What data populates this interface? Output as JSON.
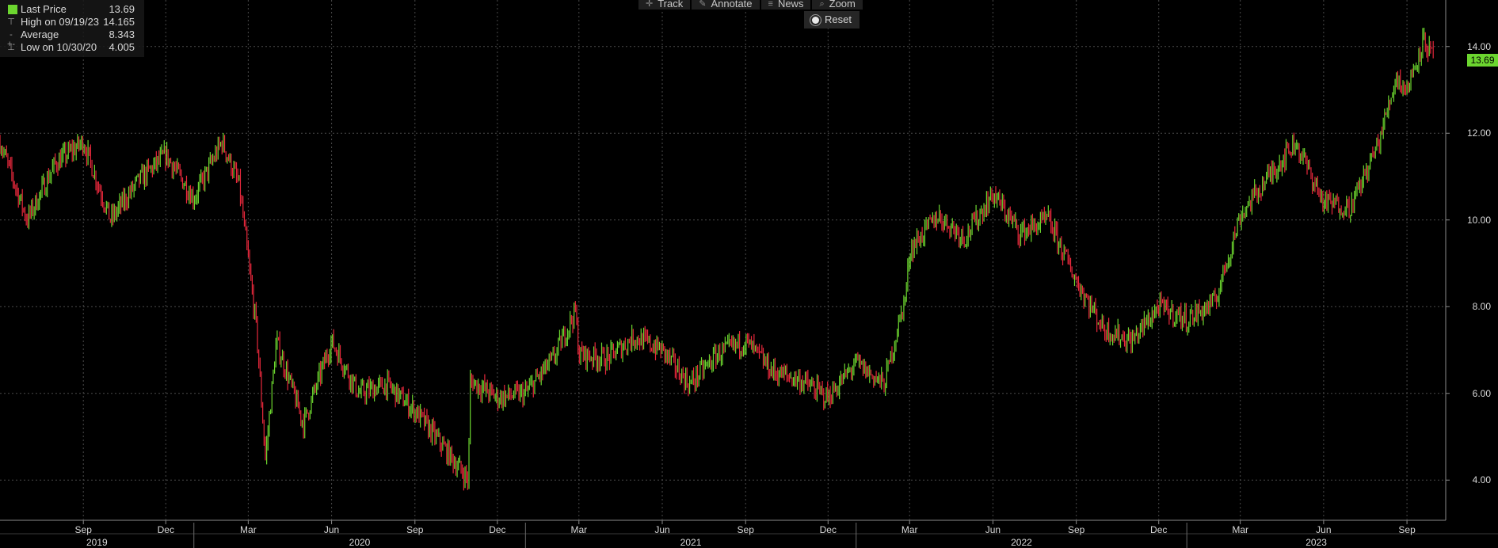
{
  "legend": {
    "items": [
      {
        "label": "Last Price",
        "value": "13.69",
        "icon": "green-square-swatch"
      },
      {
        "label": "High on 09/19/23",
        "value": "14.165",
        "icon": "high-marker-icon"
      },
      {
        "label": "Average",
        "value": "8.343",
        "icon": "average-line-icon"
      },
      {
        "label": "Low on 10/30/20",
        "value": "4.005",
        "icon": "low-marker-icon"
      }
    ]
  },
  "toolbar": {
    "track_label": "Track",
    "annotate_label": "Annotate",
    "news_label": "News",
    "zoom_label": "Zoom",
    "reset_label": "Reset"
  },
  "colors": {
    "background": "#000000",
    "up": "#6cd62f",
    "down": "#e8283c",
    "grid": "#4a4a4a",
    "last_price_tag": "#6cd62f"
  },
  "last_price_tag": "13.69",
  "chart_data": {
    "type": "line",
    "subtype": "ohlc-bars",
    "title": "",
    "xlabel": "",
    "ylabel": "",
    "ylim": [
      3.0,
      15.0
    ],
    "y_ticks": [
      "4.00",
      "6.00",
      "8.00",
      "10.00",
      "12.00",
      "14.00"
    ],
    "x_range": [
      "2019-06",
      "2023-10"
    ],
    "x_month_ticks": [
      {
        "label": "Sep",
        "date": "2019-09"
      },
      {
        "label": "Dec",
        "date": "2019-12"
      },
      {
        "label": "Mar",
        "date": "2020-03"
      },
      {
        "label": "Jun",
        "date": "2020-06"
      },
      {
        "label": "Sep",
        "date": "2020-09"
      },
      {
        "label": "Dec",
        "date": "2020-12"
      },
      {
        "label": "Mar",
        "date": "2021-03"
      },
      {
        "label": "Jun",
        "date": "2021-06"
      },
      {
        "label": "Sep",
        "date": "2021-09"
      },
      {
        "label": "Dec",
        "date": "2021-12"
      },
      {
        "label": "Mar",
        "date": "2022-03"
      },
      {
        "label": "Jun",
        "date": "2022-06"
      },
      {
        "label": "Sep",
        "date": "2022-09"
      },
      {
        "label": "Dec",
        "date": "2022-12"
      },
      {
        "label": "Mar",
        "date": "2023-03"
      },
      {
        "label": "Jun",
        "date": "2023-06"
      },
      {
        "label": "Sep",
        "date": "2023-09"
      }
    ],
    "x_year_labels": [
      "2019",
      "2020",
      "2021",
      "2022",
      "2023"
    ],
    "grid": true,
    "legend_position": "top-left",
    "series": [
      {
        "name": "Last Price",
        "points": [
          [
            "2019-06",
            11.8
          ],
          [
            "2019-07",
            10.0
          ],
          [
            "2019-08",
            11.3
          ],
          [
            "2019-09",
            11.8
          ],
          [
            "2019-10",
            10.0
          ],
          [
            "2019-11",
            10.9
          ],
          [
            "2019-12",
            11.5
          ],
          [
            "2020-01",
            10.5
          ],
          [
            "2020-02",
            11.8
          ],
          [
            "2020-02-20",
            10.8
          ],
          [
            "2020-03-10",
            7.5
          ],
          [
            "2020-03-20",
            4.5
          ],
          [
            "2020-04",
            7.2
          ],
          [
            "2020-05",
            5.3
          ],
          [
            "2020-06",
            7.2
          ],
          [
            "2020-07",
            6.0
          ],
          [
            "2020-08",
            6.2
          ],
          [
            "2020-09",
            5.6
          ],
          [
            "2020-10",
            4.8
          ],
          [
            "2020-10-30",
            4.0
          ],
          [
            "2020-11",
            6.3
          ],
          [
            "2020-12",
            5.9
          ],
          [
            "2021-01",
            6.0
          ],
          [
            "2021-02",
            6.8
          ],
          [
            "2021-02-25",
            7.9
          ],
          [
            "2021-03",
            6.9
          ],
          [
            "2021-04",
            6.8
          ],
          [
            "2021-05",
            7.3
          ],
          [
            "2021-06",
            7.0
          ],
          [
            "2021-07",
            6.2
          ],
          [
            "2021-08",
            6.9
          ],
          [
            "2021-09",
            7.2
          ],
          [
            "2021-10",
            6.5
          ],
          [
            "2021-11",
            6.3
          ],
          [
            "2021-12",
            5.9
          ],
          [
            "2022-01",
            6.7
          ],
          [
            "2022-02",
            6.2
          ],
          [
            "2022-02-25",
            8.3
          ],
          [
            "2022-03",
            9.3
          ],
          [
            "2022-04",
            10.1
          ],
          [
            "2022-05",
            9.6
          ],
          [
            "2022-06",
            10.6
          ],
          [
            "2022-07",
            9.7
          ],
          [
            "2022-08",
            10.0
          ],
          [
            "2022-09",
            8.6
          ],
          [
            "2022-10",
            7.5
          ],
          [
            "2022-11",
            7.2
          ],
          [
            "2022-12",
            8.0
          ],
          [
            "2023-01",
            7.7
          ],
          [
            "2023-02",
            8.1
          ],
          [
            "2023-03",
            10.1
          ],
          [
            "2023-04",
            11.0
          ],
          [
            "2023-05",
            11.8
          ],
          [
            "2023-06",
            10.4
          ],
          [
            "2023-07",
            10.3
          ],
          [
            "2023-08",
            11.8
          ],
          [
            "2023-08-20",
            13.3
          ],
          [
            "2023-09-01",
            13.0
          ],
          [
            "2023-09-19",
            14.165
          ],
          [
            "2023-10",
            13.69
          ]
        ]
      }
    ]
  }
}
